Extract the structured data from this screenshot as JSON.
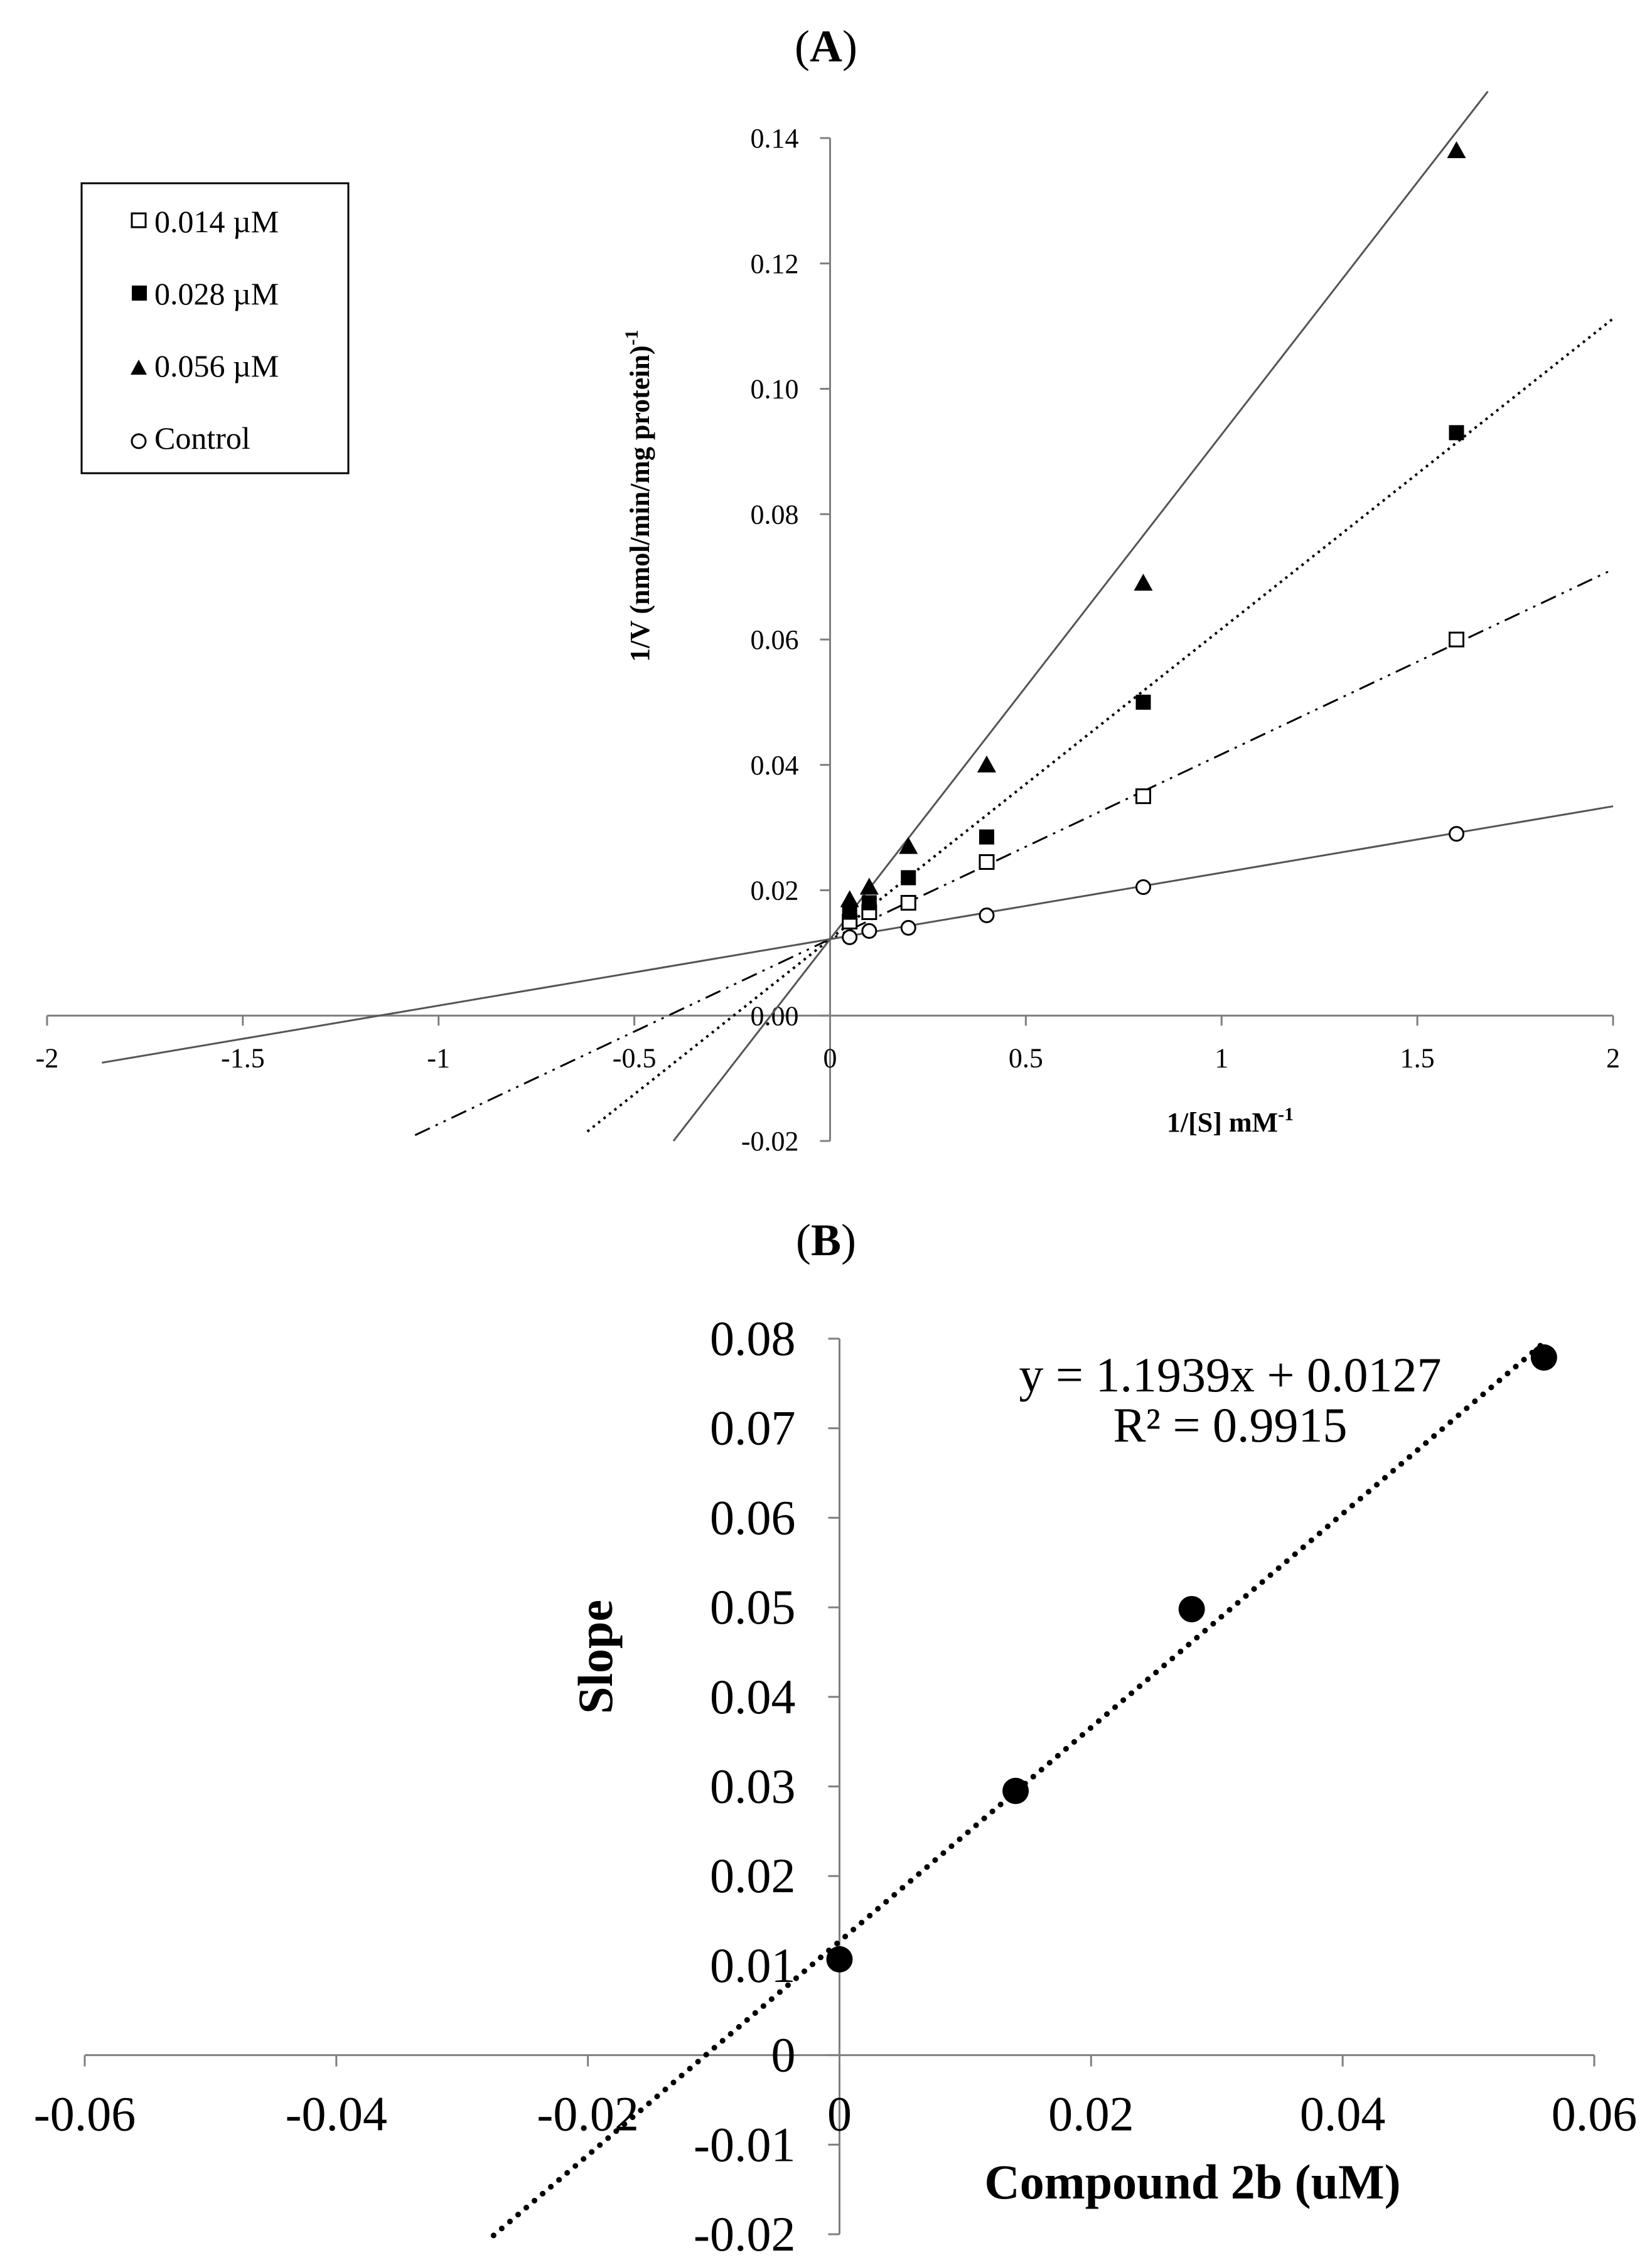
{
  "chart_data": [
    {
      "panel_label": "A",
      "type": "line",
      "title_open": "(",
      "title_close": ")",
      "xlabel": "1/[S] mM",
      "xlabel_sup": "-1",
      "ylabel": "1/V (nmol/min/mg protein)",
      "ylabel_sup": "-1",
      "xlim": [
        -2,
        2
      ],
      "ylim": [
        -0.02,
        0.14
      ],
      "x_ticks": [
        "-2",
        "-1.5",
        "-1",
        "-0.5",
        "0",
        "0.5",
        "1",
        "1.5",
        "2"
      ],
      "y_ticks": [
        "-0.02",
        "0.00",
        "0.02",
        "0.04",
        "0.06",
        "0.08",
        "0.10",
        "0.12",
        "0.14"
      ],
      "x_tick_values": [
        -2,
        -1.5,
        -1,
        -0.5,
        0,
        0.5,
        1,
        1.5,
        2
      ],
      "y_tick_values": [
        -0.02,
        0,
        0.02,
        0.04,
        0.06,
        0.08,
        0.1,
        0.12,
        0.14
      ],
      "legend_position": "top-left",
      "series": [
        {
          "name": "0.014 µM",
          "marker": "open-square",
          "line_style": "dash-dot-dot",
          "x": [
            0.05,
            0.1,
            0.2,
            0.4,
            0.8,
            1.6
          ],
          "y": [
            0.015,
            0.0165,
            0.018,
            0.0245,
            0.035,
            0.06
          ],
          "fit": {
            "slope": 0.0295,
            "intercept": 0.0122,
            "x_range": [
              -1.06,
              2.0
            ]
          }
        },
        {
          "name": "0.028 µM",
          "marker": "filled-square",
          "line_style": "dotted",
          "x": [
            0.05,
            0.1,
            0.2,
            0.4,
            0.8,
            1.6
          ],
          "y": [
            0.0165,
            0.018,
            0.022,
            0.0285,
            0.05,
            0.093
          ],
          "fit": {
            "slope": 0.0495,
            "intercept": 0.0122,
            "x_range": [
              -0.62,
              2.0
            ]
          }
        },
        {
          "name": "0.056 µM",
          "marker": "filled-triangle",
          "line_style": "solid",
          "x": [
            0.05,
            0.1,
            0.2,
            0.4,
            0.8,
            1.6
          ],
          "y": [
            0.0185,
            0.0205,
            0.027,
            0.04,
            0.069,
            0.138
          ],
          "fit": {
            "slope": 0.0805,
            "intercept": 0.0122,
            "x_range": [
              -0.4,
              1.68
            ]
          }
        },
        {
          "name": "Control",
          "marker": "open-circle",
          "line_style": "solid",
          "x": [
            0.05,
            0.1,
            0.2,
            0.4,
            0.8,
            1.6
          ],
          "y": [
            0.0125,
            0.0135,
            0.014,
            0.016,
            0.0205,
            0.029
          ],
          "fit": {
            "slope": 0.0106,
            "intercept": 0.0122,
            "x_range": [
              -1.86,
              2.0
            ]
          }
        }
      ]
    },
    {
      "panel_label": "B",
      "type": "scatter",
      "title_open": "(",
      "title_close": ")",
      "xlabel": "Compound 2b (uM)",
      "ylabel": "Slope",
      "xlim": [
        -0.06,
        0.06
      ],
      "ylim": [
        -0.02,
        0.08
      ],
      "x_ticks": [
        "-0.06",
        "-0.04",
        "-0.02",
        "0",
        "0.02",
        "0.04",
        "0.06"
      ],
      "y_ticks": [
        "-0.02",
        "-0.01",
        "0",
        "0.01",
        "0.02",
        "0.03",
        "0.04",
        "0.05",
        "0.06",
        "0.07",
        "0.08"
      ],
      "x_tick_values": [
        -0.06,
        -0.04,
        -0.02,
        0,
        0.02,
        0.04,
        0.06
      ],
      "y_tick_values": [
        -0.02,
        -0.01,
        0,
        0.01,
        0.02,
        0.03,
        0.04,
        0.05,
        0.06,
        0.07,
        0.08
      ],
      "x": [
        0,
        0.014,
        0.028,
        0.056
      ],
      "y": [
        0.0107,
        0.0295,
        0.0498,
        0.0779
      ],
      "trendline": {
        "slope": 1.1939,
        "intercept": 0.0127,
        "x_range": [
          -0.0275,
          0.0558
        ],
        "style": "dotted"
      },
      "equation": "y = 1.1939x + 0.0127",
      "r_squared": "R² = 0.9915"
    }
  ]
}
